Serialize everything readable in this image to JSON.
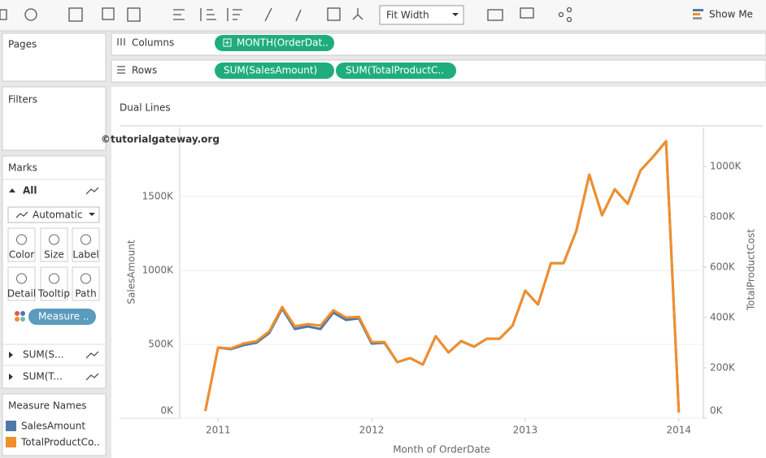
{
  "ui": {
    "toolbar": {
      "fit": "Fit Width",
      "show_me": "Show Me"
    },
    "shelves": {
      "columns": {
        "label": "Columns",
        "pills": [
          "MONTH(OrderDat.."
        ]
      },
      "rows": {
        "label": "Rows",
        "pills": [
          "SUM(SalesAmount)",
          "SUM(TotalProductC.."
        ]
      }
    },
    "panels": {
      "pages": "Pages",
      "filters": "Filters"
    },
    "marks": {
      "title": "Marks",
      "all": "All",
      "mark_type": "Automatic",
      "buttons": [
        "Color",
        "Size",
        "Label",
        "Detail",
        "Tooltip",
        "Path"
      ],
      "measure_pill": "Measure ..",
      "sub": [
        "SUM(S...",
        "SUM(T..."
      ]
    },
    "legend": {
      "title": "Measure Names",
      "items": [
        "SalesAmount",
        "TotalProductCo.."
      ]
    }
  },
  "chart_data": {
    "type": "line",
    "title": "Dual Lines",
    "watermark": "©tutorialgateway.org",
    "x_label": "Month of OrderDate",
    "y_label": "SalesAmount",
    "y2_label": "TotalProductCost",
    "x": [
      2010.917,
      2011,
      2011.083,
      2011.167,
      2011.25,
      2011.333,
      2011.417,
      2011.5,
      2011.583,
      2011.667,
      2011.75,
      2011.833,
      2011.917,
      2012,
      2012.083,
      2012.167,
      2012.25,
      2012.333,
      2012.417,
      2012.5,
      2012.583,
      2012.667,
      2012.75,
      2012.833,
      2012.917,
      2013,
      2013.083,
      2013.167,
      2013.25,
      2013.333,
      2013.417,
      2013.5,
      2013.583,
      2013.667,
      2013.75,
      2013.833,
      2013.917,
      2014
    ],
    "xlim": [
      2010.75,
      2014.16
    ],
    "xticks": [
      2011,
      2012,
      2013,
      2014
    ],
    "ylim": [
      0,
      1967000
    ],
    "yticks": [
      {
        "value": 0,
        "label": "0K"
      },
      {
        "value": 500000,
        "label": "500K"
      },
      {
        "value": 1000000,
        "label": "1000K"
      },
      {
        "value": 1500000,
        "label": "1500K"
      }
    ],
    "y2lim": [
      0,
      1155000
    ],
    "y2ticks": [
      {
        "value": 0,
        "label": "0K"
      },
      {
        "value": 200000,
        "label": "200K"
      },
      {
        "value": 400000,
        "label": "400K"
      },
      {
        "value": 600000,
        "label": "600K"
      },
      {
        "value": 800000,
        "label": "800K"
      },
      {
        "value": 1000000,
        "label": "1000K"
      }
    ],
    "grid": true,
    "series": [
      {
        "name": "SalesAmount",
        "color": "#4e79a7",
        "values": [
          49000,
          478000,
          467000,
          495000,
          511000,
          577000,
          742000,
          604000,
          621000,
          604000,
          714000,
          665000,
          676000,
          505000,
          511000,
          379000,
          407000,
          363000,
          555000,
          445000,
          522000,
          484000,
          538000,
          538000,
          626000,
          863000,
          769000,
          1049000,
          1049000,
          1269000,
          1648000,
          1374000,
          1549000,
          1451000,
          1676000,
          1769000,
          1874000,
          38000
        ]
      },
      {
        "name": "TotalProductCost",
        "color": "#f28e2b",
        "axis": "y2",
        "values": [
          29000,
          281000,
          277000,
          297000,
          306000,
          345000,
          442000,
          365000,
          374000,
          368000,
          429000,
          400000,
          403000,
          303000,
          303000,
          223000,
          239000,
          213000,
          326000,
          261000,
          306000,
          284000,
          316000,
          316000,
          368000,
          506000,
          452000,
          616000,
          616000,
          745000,
          968000,
          806000,
          910000,
          852000,
          984000,
          1039000,
          1100000,
          23000
        ]
      }
    ]
  }
}
